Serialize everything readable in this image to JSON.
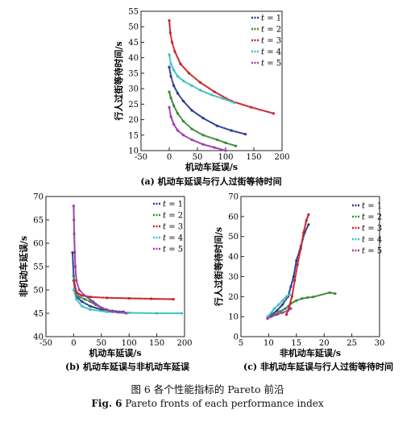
{
  "figure": {
    "caption_cn": "图 6  各个性能指标的 Pareto 前沿",
    "caption_en_label": "Fig. 6",
    "caption_en_text": "Pareto fronts of each performance index"
  },
  "colors": {
    "t1": "#2b3990",
    "t2": "#3a8a3a",
    "t3": "#c8232c",
    "t4": "#3fbfbf",
    "t5": "#9b3fa8"
  },
  "chart_data": [
    {
      "id": "a",
      "type": "scatter",
      "caption": "(a) 机动车延误与行人过街等待时间",
      "xlabel": "机动车延误/s",
      "ylabel": "行人过街等待时间/s",
      "xlim": [
        -50,
        200
      ],
      "ylim": [
        10,
        55
      ],
      "xticks": [
        -50,
        0,
        50,
        100,
        150,
        200
      ],
      "yticks": [
        10,
        15,
        20,
        25,
        30,
        35,
        40,
        45,
        50,
        55
      ],
      "legend_position": "top-right",
      "legend_prefix": "t = ",
      "series": [
        {
          "name": "1",
          "color_key": "t1",
          "points": [
            [
              0,
              37
            ],
            [
              3,
              34
            ],
            [
              8,
              31
            ],
            [
              15,
              28.5
            ],
            [
              25,
              26
            ],
            [
              40,
              23
            ],
            [
              60,
              20.5
            ],
            [
              85,
              18
            ],
            [
              110,
              16.5
            ],
            [
              135,
              15.3
            ]
          ]
        },
        {
          "name": "2",
          "color_key": "t2",
          "points": [
            [
              0,
              29
            ],
            [
              3,
              27
            ],
            [
              8,
              24.5
            ],
            [
              15,
              22
            ],
            [
              25,
              19.5
            ],
            [
              40,
              17
            ],
            [
              60,
              15
            ],
            [
              85,
              13.5
            ],
            [
              100,
              12.5
            ],
            [
              118,
              11.5
            ]
          ]
        },
        {
          "name": "3",
          "color_key": "t3",
          "points": [
            [
              0,
              52
            ],
            [
              2,
              48
            ],
            [
              5,
              45
            ],
            [
              10,
              42
            ],
            [
              20,
              38
            ],
            [
              35,
              35
            ],
            [
              55,
              32
            ],
            [
              80,
              29
            ],
            [
              110,
              26
            ],
            [
              145,
              24
            ],
            [
              185,
              22
            ]
          ]
        },
        {
          "name": "4",
          "color_key": "t4",
          "points": [
            [
              0,
              41
            ],
            [
              3,
              38
            ],
            [
              8,
              36
            ],
            [
              15,
              34
            ],
            [
              25,
              32.5
            ],
            [
              40,
              31
            ],
            [
              55,
              29.5
            ],
            [
              75,
              28
            ],
            [
              95,
              26.8
            ],
            [
              115,
              25.5
            ]
          ]
        },
        {
          "name": "5",
          "color_key": "t5",
          "points": [
            [
              0,
              24
            ],
            [
              3,
              21
            ],
            [
              8,
              18.5
            ],
            [
              15,
              16.5
            ],
            [
              25,
              15
            ],
            [
              40,
              13.5
            ],
            [
              60,
              12
            ],
            [
              80,
              11
            ],
            [
              100,
              10
            ]
          ]
        }
      ]
    },
    {
      "id": "b",
      "type": "scatter",
      "caption": "(b) 机动车延误与非机动车延误",
      "xlabel": "机动车延误/s",
      "ylabel": "非机动车延误/s",
      "xlim": [
        -50,
        200
      ],
      "ylim": [
        40,
        70
      ],
      "xticks": [
        -50,
        0,
        50,
        100,
        150,
        200
      ],
      "yticks": [
        40,
        45,
        50,
        55,
        60,
        65,
        70
      ],
      "legend_position": "top-right",
      "legend_prefix": "t = ",
      "series": [
        {
          "name": "1",
          "color_key": "t1",
          "points": [
            [
              -2,
              58
            ],
            [
              0,
              53
            ],
            [
              2,
              50
            ],
            [
              5,
              48.5
            ],
            [
              15,
              47.5
            ],
            [
              30,
              46.5
            ],
            [
              50,
              45.8
            ],
            [
              70,
              45.5
            ],
            [
              90,
              45.3
            ]
          ]
        },
        {
          "name": "2",
          "color_key": "t2",
          "points": [
            [
              0,
              53
            ],
            [
              3,
              50
            ],
            [
              10,
              48.5
            ],
            [
              20,
              48
            ],
            [
              30,
              47.5
            ],
            [
              40,
              46.8
            ],
            [
              50,
              46.2
            ],
            [
              60,
              45.8
            ],
            [
              70,
              45.3
            ]
          ]
        },
        {
          "name": "3",
          "color_key": "t3",
          "points": [
            [
              0,
              52
            ],
            [
              5,
              49.5
            ],
            [
              15,
              48.8
            ],
            [
              30,
              48.5
            ],
            [
              60,
              48.3
            ],
            [
              100,
              48.2
            ],
            [
              140,
              48.1
            ],
            [
              180,
              48
            ]
          ]
        },
        {
          "name": "4",
          "color_key": "t4",
          "points": [
            [
              0,
              50
            ],
            [
              5,
              48
            ],
            [
              15,
              46.5
            ],
            [
              30,
              45.8
            ],
            [
              60,
              45.3
            ],
            [
              100,
              45.1
            ],
            [
              150,
              45
            ],
            [
              195,
              45
            ]
          ]
        },
        {
          "name": "5",
          "color_key": "t5",
          "points": [
            [
              0,
              68
            ],
            [
              0.5,
              65
            ],
            [
              1,
              62
            ],
            [
              2,
              58
            ],
            [
              3,
              55
            ],
            [
              5,
              52
            ],
            [
              10,
              50
            ],
            [
              20,
              48.8
            ],
            [
              35,
              47.5
            ],
            [
              50,
              46.2
            ],
            [
              65,
              45.5
            ],
            [
              80,
              45.2
            ],
            [
              95,
              45
            ]
          ]
        }
      ]
    },
    {
      "id": "c",
      "type": "scatter",
      "caption": "(c) 非机动车延误与行人过街等待时间",
      "xlabel": "非机动车延误/s",
      "ylabel": "行人过街等待时间/s",
      "xlim": [
        5,
        30
      ],
      "ylim": [
        0,
        70
      ],
      "xticks": [
        5,
        10,
        15,
        20,
        25,
        30
      ],
      "yticks": [
        0,
        10,
        20,
        30,
        40,
        50,
        60,
        70
      ],
      "legend_position": "top-right",
      "legend_prefix": "t = ",
      "series": [
        {
          "name": "1",
          "color_key": "t1",
          "points": [
            [
              9.8,
              9.5
            ],
            [
              10.5,
              11
            ],
            [
              11.5,
              13
            ],
            [
              12.5,
              16
            ],
            [
              13.5,
              20
            ],
            [
              14,
              25
            ],
            [
              14.5,
              30
            ],
            [
              15,
              38
            ],
            [
              15.8,
              45
            ],
            [
              16.5,
              52
            ],
            [
              17.2,
              56
            ]
          ]
        },
        {
          "name": "2",
          "color_key": "t2",
          "points": [
            [
              10,
              10
            ],
            [
              11,
              11
            ],
            [
              12,
              12.5
            ],
            [
              13,
              14
            ],
            [
              14,
              16.5
            ],
            [
              15,
              18
            ],
            [
              16,
              19
            ],
            [
              17,
              19.5
            ],
            [
              18,
              19.8
            ],
            [
              21,
              22
            ],
            [
              22,
              21.5
            ]
          ]
        },
        {
          "name": "3",
          "color_key": "t3",
          "points": [
            [
              13.2,
              11
            ],
            [
              13.7,
              15
            ],
            [
              14.2,
              20
            ],
            [
              14.7,
              28
            ],
            [
              15.2,
              36
            ],
            [
              15.8,
              44
            ],
            [
              16.3,
              52
            ],
            [
              16.8,
              58
            ],
            [
              17.2,
              61
            ]
          ]
        },
        {
          "name": "4",
          "color_key": "t4",
          "points": [
            [
              9.8,
              10
            ],
            [
              10.5,
              12
            ],
            [
              11,
              14
            ],
            [
              11.8,
              16
            ],
            [
              12.5,
              18
            ],
            [
              13.2,
              20
            ],
            [
              13.8,
              21
            ]
          ]
        },
        {
          "name": "5",
          "color_key": "t5",
          "points": [
            [
              9.8,
              9
            ],
            [
              10.5,
              10
            ],
            [
              11.5,
              11
            ],
            [
              12.5,
              12
            ],
            [
              13.5,
              13
            ],
            [
              14,
              14
            ]
          ]
        }
      ]
    }
  ]
}
